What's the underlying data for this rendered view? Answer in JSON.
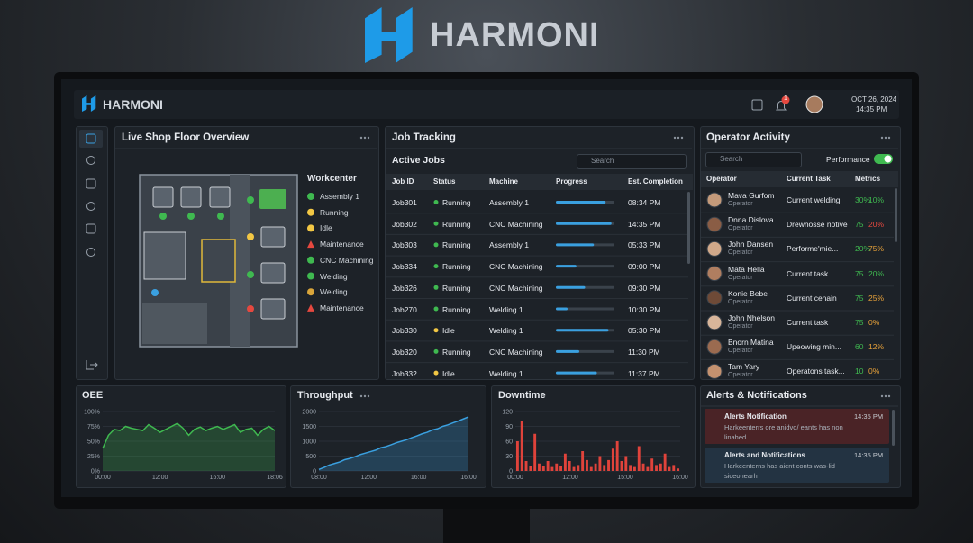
{
  "brand": {
    "logo_text": "HARMONI"
  },
  "header": {
    "logo_text": "HARMONI",
    "notification_count": "1",
    "date": "OCT 26, 2024",
    "time": "14:35 PM"
  },
  "shop_floor": {
    "title": "Live Shop Floor Overview",
    "legend_title": "Workcenter",
    "legend": [
      {
        "label": "Assembly 1",
        "color": "#3fb950",
        "shape": "dot"
      },
      {
        "label": "Running",
        "color": "#f2c744",
        "shape": "dot"
      },
      {
        "label": "Idle",
        "color": "#f2c744",
        "shape": "dot"
      },
      {
        "label": "Maintenance",
        "color": "#e5483f",
        "shape": "triangle"
      },
      {
        "label": "CNC Machining",
        "color": "#3fb950",
        "shape": "dot"
      },
      {
        "label": "Welding",
        "color": "#3fb950",
        "shape": "dot"
      },
      {
        "label": "Welding",
        "color": "#d9a53a",
        "shape": "dot"
      },
      {
        "label": "Maintenance",
        "color": "#e5483f",
        "shape": "triangle"
      }
    ]
  },
  "job_tracking": {
    "title": "Job Tracking",
    "subtitle": "Active Jobs",
    "search": "Search",
    "progress_color": "#3aa0e0",
    "status_colors": {
      "Running": "#3fb950",
      "Idle": "#f2c744"
    },
    "columns": [
      "Job ID",
      "Status",
      "Machine",
      "Progress",
      "Est. Completion"
    ],
    "rows": [
      {
        "id": "Job301",
        "status": "Running",
        "machine": "Assembly 1",
        "progress": 85,
        "eta": "08:34 PM"
      },
      {
        "id": "Job302",
        "status": "Running",
        "machine": "CNC Machining",
        "progress": 95,
        "eta": "14:35 PM"
      },
      {
        "id": "Job303",
        "status": "Running",
        "machine": "Assembly 1",
        "progress": 65,
        "eta": "05:33 PM"
      },
      {
        "id": "Job334",
        "status": "Running",
        "machine": "CNC Machining",
        "progress": 35,
        "eta": "09:00 PM"
      },
      {
        "id": "Job326",
        "status": "Running",
        "machine": "CNC Machining",
        "progress": 50,
        "eta": "09:30 PM"
      },
      {
        "id": "Job270",
        "status": "Running",
        "machine": "Welding 1",
        "progress": 20,
        "eta": "10:30 PM"
      },
      {
        "id": "Job330",
        "status": "Idle",
        "machine": "Welding 1",
        "progress": 90,
        "eta": "05:30 PM"
      },
      {
        "id": "Job320",
        "status": "Running",
        "machine": "CNC Machining",
        "progress": 40,
        "eta": "11:30 PM"
      },
      {
        "id": "Job332",
        "status": "Idle",
        "machine": "Welding 1",
        "progress": 70,
        "eta": "11:37 PM"
      }
    ]
  },
  "operator_activity": {
    "title": "Operator Activity",
    "search": "Search",
    "toggle_label": "Performance",
    "columns": [
      "Operator",
      "Current Task",
      "Metrics"
    ],
    "rows": [
      {
        "name": "Mava Gurfom",
        "role": "Operator",
        "task": "Current welding",
        "m1": "30%",
        "m2": "10%",
        "m2_color": "#3fb950"
      },
      {
        "name": "Dnna Dislova",
        "role": "Operator",
        "task": "Drewnosse notive",
        "m1": "75",
        "m2": "20%",
        "m2_color": "#e5483f"
      },
      {
        "name": "John Dansen",
        "role": "Operator",
        "task": "Performe'mie...",
        "m1": "20%",
        "m2": "75%",
        "m2_color": "#e8a23a"
      },
      {
        "name": "Mata Hella",
        "role": "Operator",
        "task": "Current task",
        "m1": "75",
        "m2": "20%",
        "m2_color": "#3fb950"
      },
      {
        "name": "Konie Bebe",
        "role": "Operator",
        "task": "Current cenain",
        "m1": "75",
        "m2": "25%",
        "m2_color": "#e8a23a"
      },
      {
        "name": "John Nhelson",
        "role": "Operator",
        "task": "Current task",
        "m1": "75",
        "m2": "0%",
        "m2_color": "#e8a23a"
      },
      {
        "name": "Bnorn Matina",
        "role": "Operator",
        "task": "Upeowing min...",
        "m1": "60",
        "m2": "12%",
        "m2_color": "#e8a23a"
      },
      {
        "name": "Tam Yary",
        "role": "Operator",
        "task": "Operatons task...",
        "m1": "10",
        "m2": "0%",
        "m2_color": "#e8a23a"
      }
    ]
  },
  "oee": {
    "title": "OEE",
    "type": "area",
    "color": "#3fb950",
    "ylim": [
      0,
      100
    ],
    "yticks": [
      {
        "value": 0,
        "label": "0%"
      },
      {
        "value": 25,
        "label": "25%"
      },
      {
        "value": 50,
        "label": "50%"
      },
      {
        "value": 75,
        "label": "75%"
      },
      {
        "value": 100,
        "label": "100%"
      }
    ],
    "xlabels": [
      "00:00",
      "12:00",
      "16:00",
      "18:06"
    ],
    "values": [
      38,
      60,
      70,
      68,
      75,
      72,
      70,
      68,
      78,
      72,
      65,
      70,
      75,
      80,
      72,
      60,
      70,
      74,
      68,
      72,
      75,
      70,
      74,
      78,
      65,
      70,
      72,
      60,
      70,
      75,
      68
    ]
  },
  "throughput": {
    "title": "Throughput",
    "type": "area",
    "color": "#3aa0e0",
    "ylim": [
      0,
      2000
    ],
    "yticks": [
      0,
      500,
      1000,
      1500,
      2000
    ],
    "xlabels": [
      "08:00",
      "12:00",
      "16:00",
      "16:00"
    ],
    "values": [
      50,
      120,
      200,
      250,
      300,
      380,
      420,
      480,
      550,
      600,
      650,
      700,
      780,
      820,
      880,
      950,
      1000,
      1050,
      1120,
      1180,
      1250,
      1300,
      1380,
      1420,
      1500,
      1550,
      1620,
      1680,
      1750,
      1820
    ]
  },
  "downtime": {
    "title": "Downtime",
    "type": "bar",
    "color": "#e0433b",
    "ylim": [
      0,
      120
    ],
    "yticks": [
      0,
      30,
      60,
      90,
      120
    ],
    "xlabels": [
      "00:00",
      "12:00",
      "15:00",
      "16:00"
    ],
    "values": [
      60,
      100,
      20,
      10,
      75,
      15,
      10,
      20,
      8,
      15,
      10,
      35,
      20,
      8,
      12,
      40,
      22,
      8,
      15,
      30,
      12,
      22,
      45,
      60,
      20,
      30,
      12,
      8,
      50,
      15,
      8,
      25,
      12,
      15,
      35,
      8,
      12,
      5
    ]
  },
  "alerts": {
    "title": "Alerts & Notifications",
    "items": [
      {
        "title": "Alerts Notification",
        "time": "14:35 PM",
        "text": "Harkeenterrs ore anidvo/ eants has non linahed",
        "color": "#e5483f",
        "bg": "#4a2326"
      },
      {
        "title": "Alerts and Notifications",
        "time": "14:35 PM",
        "text": "Harkeenterns has aient conts was-lid siceohearh",
        "color": "#f2c744",
        "bg": "#233342"
      }
    ]
  }
}
